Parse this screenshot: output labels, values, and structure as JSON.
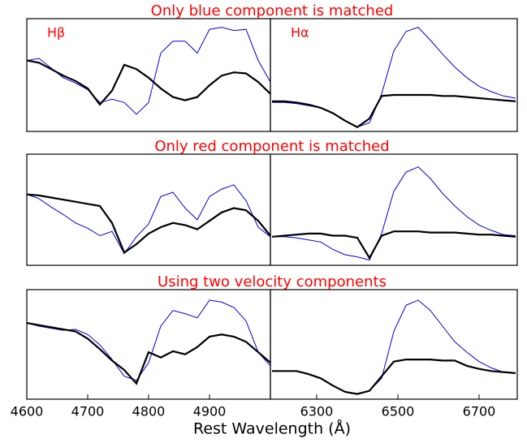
{
  "chart_data": [
    {
      "type": "line",
      "title": "Only blue component is matched",
      "annotation": "Hβ",
      "x": [
        4600,
        4620,
        4640,
        4660,
        4680,
        4700,
        4720,
        4740,
        4760,
        4780,
        4800,
        4820,
        4840,
        4860,
        4880,
        4900,
        4920,
        4940,
        4960,
        4980,
        5000
      ],
      "xlim": [
        4600,
        5000
      ],
      "ylim": [
        0,
        1.05
      ],
      "series": [
        {
          "color": "#0000dd",
          "values": [
            0.66,
            0.68,
            0.59,
            0.5,
            0.45,
            0.39,
            0.27,
            0.3,
            0.27,
            0.16,
            0.27,
            0.73,
            0.84,
            0.84,
            0.73,
            0.95,
            0.97,
            0.94,
            0.95,
            0.66,
            0.46
          ]
        },
        {
          "color": "#000000",
          "values": [
            0.66,
            0.64,
            0.58,
            0.52,
            0.47,
            0.4,
            0.25,
            0.38,
            0.62,
            0.58,
            0.5,
            0.4,
            0.32,
            0.29,
            0.32,
            0.43,
            0.52,
            0.55,
            0.54,
            0.46,
            0.35
          ]
        }
      ]
    },
    {
      "type": "line",
      "annotation": "Hα",
      "x": [
        6190,
        6220,
        6250,
        6280,
        6310,
        6340,
        6370,
        6400,
        6430,
        6460,
        6490,
        6520,
        6550,
        6580,
        6610,
        6640,
        6670,
        6700,
        6730,
        6760,
        6790
      ],
      "xlim": [
        6186,
        6794
      ],
      "ylim": [
        0,
        1.05
      ],
      "series": [
        {
          "color": "#0000dd",
          "values": [
            0.27,
            0.27,
            0.26,
            0.24,
            0.22,
            0.17,
            0.1,
            0.04,
            0.08,
            0.35,
            0.75,
            0.93,
            0.97,
            0.85,
            0.72,
            0.6,
            0.5,
            0.42,
            0.37,
            0.33,
            0.31
          ]
        },
        {
          "color": "#000000",
          "values": [
            0.28,
            0.28,
            0.27,
            0.25,
            0.22,
            0.17,
            0.1,
            0.04,
            0.12,
            0.33,
            0.34,
            0.34,
            0.34,
            0.34,
            0.33,
            0.33,
            0.32,
            0.31,
            0.3,
            0.29,
            0.28
          ]
        }
      ]
    },
    {
      "type": "line",
      "title": "Only red component is matched",
      "x": [
        4600,
        4620,
        4640,
        4660,
        4680,
        4700,
        4720,
        4740,
        4760,
        4780,
        4800,
        4820,
        4840,
        4860,
        4880,
        4900,
        4920,
        4940,
        4960,
        4980,
        5000
      ],
      "xlim": [
        4600,
        5000
      ],
      "ylim": [
        0,
        1.05
      ],
      "series": [
        {
          "color": "#0000dd",
          "values": [
            0.67,
            0.63,
            0.55,
            0.48,
            0.4,
            0.35,
            0.28,
            0.32,
            0.11,
            0.27,
            0.39,
            0.65,
            0.69,
            0.54,
            0.43,
            0.65,
            0.72,
            0.76,
            0.61,
            0.36,
            0.27
          ]
        },
        {
          "color": "#000000",
          "values": [
            0.67,
            0.66,
            0.64,
            0.62,
            0.6,
            0.58,
            0.56,
            0.4,
            0.12,
            0.2,
            0.3,
            0.36,
            0.4,
            0.38,
            0.34,
            0.42,
            0.5,
            0.54,
            0.52,
            0.42,
            0.28
          ]
        }
      ]
    },
    {
      "type": "line",
      "x": [
        6190,
        6220,
        6250,
        6280,
        6310,
        6340,
        6370,
        6400,
        6430,
        6460,
        6490,
        6520,
        6550,
        6580,
        6610,
        6640,
        6670,
        6700,
        6730,
        6760,
        6790
      ],
      "xlim": [
        6186,
        6794
      ],
      "ylim": [
        0,
        1.05
      ],
      "series": [
        {
          "color": "#0000dd",
          "values": [
            0.27,
            0.27,
            0.26,
            0.24,
            0.22,
            0.15,
            0.1,
            0.08,
            0.05,
            0.3,
            0.7,
            0.88,
            0.93,
            0.82,
            0.68,
            0.56,
            0.46,
            0.38,
            0.33,
            0.29,
            0.28
          ]
        },
        {
          "color": "#000000",
          "values": [
            0.27,
            0.28,
            0.29,
            0.3,
            0.3,
            0.28,
            0.28,
            0.26,
            0.07,
            0.28,
            0.32,
            0.32,
            0.32,
            0.31,
            0.31,
            0.31,
            0.3,
            0.29,
            0.29,
            0.28,
            0.27
          ]
        }
      ]
    },
    {
      "type": "line",
      "title": "Using two velocity components",
      "xlabel": "Rest Wavelength (Å)",
      "x": [
        4600,
        4620,
        4640,
        4660,
        4680,
        4700,
        4720,
        4740,
        4760,
        4780,
        4800,
        4820,
        4840,
        4860,
        4880,
        4900,
        4920,
        4940,
        4960,
        4980,
        5000
      ],
      "xlim": [
        4600,
        5000
      ],
      "ylim": [
        0,
        1.05
      ],
      "xticks": [
        4600,
        4700,
        4800,
        4900
      ],
      "series": [
        {
          "color": "#0000dd",
          "values": [
            0.73,
            0.7,
            0.68,
            0.66,
            0.67,
            0.62,
            0.52,
            0.38,
            0.22,
            0.18,
            0.35,
            0.7,
            0.85,
            0.82,
            0.78,
            0.95,
            0.93,
            0.88,
            0.75,
            0.45,
            0.32
          ]
        },
        {
          "color": "#000000",
          "values": [
            0.73,
            0.71,
            0.69,
            0.67,
            0.65,
            0.58,
            0.48,
            0.37,
            0.28,
            0.15,
            0.45,
            0.4,
            0.46,
            0.43,
            0.5,
            0.6,
            0.62,
            0.6,
            0.55,
            0.45,
            0.35
          ]
        }
      ]
    },
    {
      "type": "line",
      "x": [
        6190,
        6220,
        6250,
        6280,
        6310,
        6340,
        6370,
        6400,
        6430,
        6460,
        6490,
        6520,
        6550,
        6580,
        6610,
        6640,
        6670,
        6700,
        6730,
        6760,
        6790
      ],
      "xlim": [
        6186,
        6794
      ],
      "ylim": [
        0,
        1.05
      ],
      "xticks": [
        6300,
        6500,
        6700
      ],
      "series": [
        {
          "color": "#0000dd",
          "values": [
            0.27,
            0.27,
            0.27,
            0.24,
            0.2,
            0.13,
            0.07,
            0.05,
            0.08,
            0.2,
            0.65,
            0.9,
            0.95,
            0.85,
            0.7,
            0.55,
            0.45,
            0.36,
            0.3,
            0.26,
            0.25
          ]
        },
        {
          "color": "#000000",
          "values": [
            0.27,
            0.27,
            0.27,
            0.24,
            0.2,
            0.13,
            0.07,
            0.05,
            0.08,
            0.22,
            0.36,
            0.38,
            0.38,
            0.38,
            0.37,
            0.37,
            0.32,
            0.29,
            0.27,
            0.26,
            0.25
          ]
        }
      ]
    }
  ]
}
